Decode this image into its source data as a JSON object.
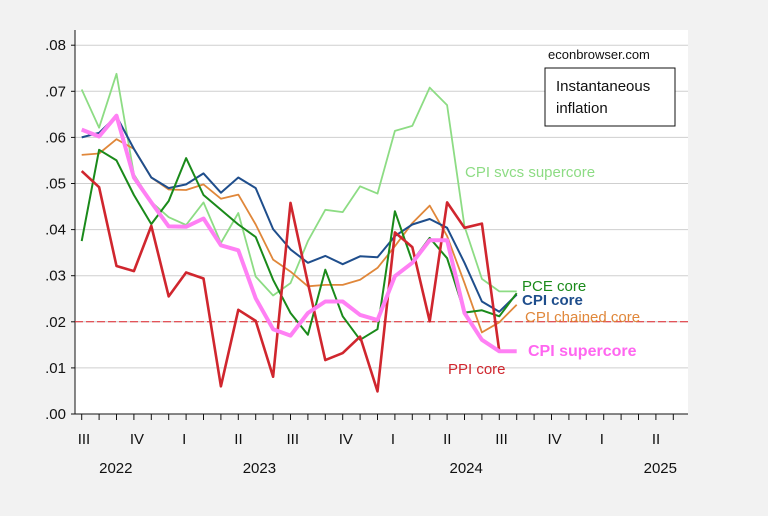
{
  "chart_data": {
    "type": "line",
    "title": "",
    "source": "econbrowser.com",
    "legend_box": [
      "Instantaneous",
      "inflation"
    ],
    "x_start": "2022-07",
    "frequency": "monthly",
    "x": [
      "2022-07",
      "2022-08",
      "2022-09",
      "2022-10",
      "2022-11",
      "2022-12",
      "2023-01",
      "2023-02",
      "2023-03",
      "2023-04",
      "2023-05",
      "2023-06",
      "2023-07",
      "2023-08",
      "2023-09",
      "2023-10",
      "2023-11",
      "2023-12",
      "2024-01",
      "2024-02",
      "2024-03",
      "2024-04",
      "2024-05",
      "2024-06",
      "2024-07",
      "2024-08"
    ],
    "xlim": [
      "2022-07",
      "2025-06"
    ],
    "ylim": [
      0,
      0.08
    ],
    "yticks": [
      ".00",
      ".01",
      ".02",
      ".03",
      ".04",
      ".05",
      ".06",
      ".07",
      ".08"
    ],
    "quarter_labels": [
      "III",
      "IV",
      "I",
      "II",
      "III",
      "IV",
      "I",
      "II",
      "III",
      "IV",
      "I",
      "II"
    ],
    "year_labels": [
      "2022",
      "2023",
      "2024",
      "2025"
    ],
    "grid": true,
    "reference_line": {
      "y": 0.02,
      "color": "#e0242a",
      "style": "dashed"
    },
    "series": [
      {
        "name": "CPI svcs supercore",
        "color": "#8ddc84",
        "width": 1.8,
        "bold": false,
        "values": [
          0.0704,
          0.0621,
          0.0738,
          0.052,
          0.046,
          0.0427,
          0.041,
          0.0459,
          0.0371,
          0.0436,
          0.0298,
          0.0257,
          0.0284,
          0.0375,
          0.0443,
          0.0438,
          0.0494,
          0.0478,
          0.0614,
          0.0625,
          0.0708,
          0.067,
          0.0407,
          0.0293,
          0.0266,
          0.0266
        ]
      },
      {
        "name": "CPI chained core",
        "color": "#e0873a",
        "width": 1.8,
        "bold": false,
        "values": [
          0.0562,
          0.0565,
          0.0596,
          0.0575,
          0.0513,
          0.0487,
          0.0486,
          0.0498,
          0.0467,
          0.0476,
          0.0411,
          0.0335,
          0.0309,
          0.0277,
          0.028,
          0.028,
          0.0291,
          0.0317,
          0.0364,
          0.0414,
          0.0452,
          0.0386,
          0.0284,
          0.0177,
          0.0199,
          0.0237
        ]
      },
      {
        "name": "CPI core",
        "color": "#1f4e8c",
        "width": 2,
        "bold": true,
        "values": [
          0.06,
          0.061,
          0.0646,
          0.0575,
          0.0513,
          0.049,
          0.0498,
          0.0522,
          0.048,
          0.0513,
          0.049,
          0.0401,
          0.0357,
          0.0328,
          0.0343,
          0.0325,
          0.0342,
          0.034,
          0.0386,
          0.0411,
          0.0423,
          0.0404,
          0.0328,
          0.0244,
          0.0222,
          0.0259
        ]
      },
      {
        "name": "PCE core",
        "color": "#1a8a1a",
        "width": 2,
        "bold": false,
        "values": [
          0.0375,
          0.0573,
          0.055,
          0.0475,
          0.0412,
          0.0462,
          0.0555,
          0.0475,
          0.0443,
          0.0411,
          0.0384,
          0.0291,
          0.0219,
          0.0172,
          0.0313,
          0.0212,
          0.0161,
          0.0184,
          0.044,
          0.0331,
          0.0382,
          0.0338,
          0.022,
          0.0225,
          0.0212,
          0.0262
        ]
      },
      {
        "name": "PPI core",
        "color": "#d0262e",
        "width": 2.6,
        "bold": false,
        "values": [
          0.0527,
          0.0492,
          0.0321,
          0.031,
          0.0408,
          0.0255,
          0.0307,
          0.0294,
          0.006,
          0.0226,
          0.0202,
          0.0081,
          0.0458,
          0.0284,
          0.0117,
          0.0132,
          0.0168,
          0.0049,
          0.0394,
          0.0362,
          0.0201,
          0.0459,
          0.0404,
          0.0413,
          0.0136,
          null
        ]
      },
      {
        "name": "CPI supercore",
        "color": "#ff80f4",
        "width": 4,
        "bold": true,
        "values": [
          0.0617,
          0.0602,
          0.0647,
          0.0513,
          0.0459,
          0.0407,
          0.0406,
          0.0424,
          0.0366,
          0.0355,
          0.0251,
          0.0184,
          0.017,
          0.0219,
          0.0244,
          0.0244,
          0.0215,
          0.0204,
          0.0299,
          0.0328,
          0.0377,
          0.0377,
          0.0219,
          0.0161,
          0.0136,
          0.0136
        ]
      }
    ]
  }
}
